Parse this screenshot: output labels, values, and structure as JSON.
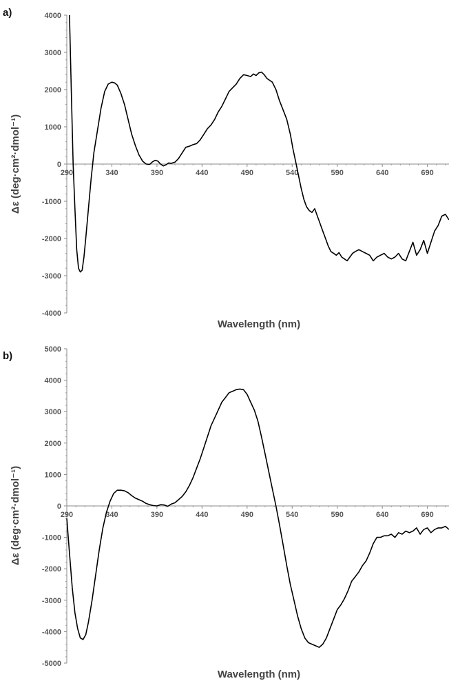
{
  "chart_data": [
    {
      "type": "line",
      "panel_label": "a)",
      "title": "",
      "xlabel": "Wavelength (nm)",
      "ylabel": "Δε (deg·cm²·dmol⁻¹)",
      "xlim": [
        290,
        714
      ],
      "ylim": [
        -4000,
        4000
      ],
      "xticks": [
        290,
        340,
        390,
        440,
        490,
        540,
        590,
        640,
        690
      ],
      "yticks": [
        -4000,
        -3000,
        -2000,
        -1000,
        0,
        1000,
        2000,
        3000,
        4000
      ],
      "grid": false,
      "series": [
        {
          "x": [
            293,
            295,
            297,
            299,
            301,
            303,
            305,
            307,
            309,
            311,
            314,
            317,
            320,
            324,
            328,
            332,
            336,
            340,
            343,
            346,
            350,
            354,
            358,
            362,
            366,
            370,
            374,
            378,
            382,
            385,
            388,
            391,
            394,
            397,
            400,
            403,
            406,
            410,
            414,
            418,
            422,
            426,
            430,
            434,
            438,
            442,
            446,
            450,
            454,
            458,
            462,
            466,
            470,
            474,
            478,
            482,
            486,
            490,
            494,
            497,
            500,
            503,
            506,
            509,
            512,
            515,
            518,
            522,
            526,
            530,
            534,
            538,
            541,
            544,
            547,
            550,
            553,
            556,
            559,
            562,
            565,
            568,
            571,
            574,
            577,
            580,
            583,
            586,
            589,
            592,
            595,
            598,
            601,
            604,
            607,
            610,
            614,
            618,
            622,
            626,
            630,
            634,
            638,
            642,
            646,
            650,
            654,
            658,
            662,
            666,
            670,
            674,
            678,
            682,
            686,
            690,
            694,
            698,
            702,
            706,
            710,
            714
          ],
          "y": [
            4000,
            2000,
            0,
            -1200,
            -2300,
            -2800,
            -2900,
            -2850,
            -2500,
            -2000,
            -1200,
            -400,
            300,
            900,
            1500,
            1950,
            2150,
            2200,
            2180,
            2120,
            1900,
            1600,
            1200,
            800,
            500,
            250,
            80,
            0,
            -10,
            60,
            100,
            80,
            0,
            -50,
            -20,
            30,
            20,
            50,
            150,
            300,
            450,
            480,
            520,
            550,
            650,
            800,
            950,
            1050,
            1200,
            1400,
            1550,
            1750,
            1950,
            2050,
            2150,
            2300,
            2400,
            2380,
            2350,
            2420,
            2380,
            2450,
            2470,
            2400,
            2300,
            2250,
            2200,
            2000,
            1700,
            1450,
            1200,
            800,
            400,
            50,
            -300,
            -650,
            -950,
            -1150,
            -1250,
            -1300,
            -1200,
            -1400,
            -1600,
            -1800,
            -2000,
            -2200,
            -2350,
            -2400,
            -2450,
            -2380,
            -2500,
            -2550,
            -2600,
            -2500,
            -2400,
            -2350,
            -2300,
            -2350,
            -2400,
            -2450,
            -2600,
            -2500,
            -2450,
            -2400,
            -2500,
            -2550,
            -2500,
            -2400,
            -2550,
            -2600,
            -2350,
            -2100,
            -2450,
            -2300,
            -2050,
            -2400,
            -2100,
            -1800,
            -1650,
            -1400,
            -1350,
            -1500
          ]
        }
      ]
    },
    {
      "type": "line",
      "panel_label": "b)",
      "title": "",
      "xlabel": "Wavelength (nm)",
      "ylabel": "Δε (deg·cm²·dmol⁻¹)",
      "xlim": [
        290,
        714
      ],
      "ylim": [
        -5000,
        5000
      ],
      "xticks": [
        290,
        340,
        390,
        440,
        490,
        540,
        590,
        640,
        690
      ],
      "yticks": [
        -5000,
        -4000,
        -3000,
        -2000,
        -1000,
        0,
        1000,
        2000,
        3000,
        4000,
        5000
      ],
      "grid": false,
      "series": [
        {
          "x": [
            290,
            293,
            296,
            299,
            302,
            305,
            308,
            311,
            314,
            318,
            322,
            326,
            330,
            334,
            338,
            342,
            346,
            350,
            354,
            358,
            362,
            366,
            370,
            374,
            378,
            382,
            386,
            390,
            394,
            398,
            402,
            406,
            410,
            414,
            418,
            422,
            426,
            430,
            434,
            438,
            442,
            446,
            450,
            454,
            458,
            462,
            466,
            470,
            474,
            478,
            482,
            486,
            490,
            494,
            498,
            502,
            506,
            510,
            514,
            518,
            522,
            526,
            530,
            534,
            538,
            542,
            546,
            550,
            554,
            558,
            562,
            566,
            570,
            574,
            578,
            582,
            586,
            590,
            594,
            598,
            602,
            606,
            610,
            614,
            618,
            622,
            626,
            630,
            634,
            638,
            642,
            646,
            650,
            654,
            658,
            662,
            666,
            670,
            674,
            678,
            682,
            686,
            690,
            694,
            698,
            702,
            706,
            710,
            714
          ],
          "y": [
            -400,
            -1500,
            -2600,
            -3400,
            -3900,
            -4200,
            -4250,
            -4100,
            -3700,
            -3000,
            -2200,
            -1400,
            -700,
            -200,
            150,
            400,
            500,
            500,
            480,
            420,
            330,
            250,
            200,
            150,
            80,
            40,
            10,
            0,
            40,
            30,
            -10,
            60,
            100,
            200,
            300,
            450,
            650,
            900,
            1200,
            1500,
            1850,
            2200,
            2550,
            2800,
            3050,
            3300,
            3450,
            3600,
            3650,
            3700,
            3720,
            3700,
            3550,
            3300,
            3050,
            2700,
            2200,
            1650,
            1100,
            550,
            0,
            -600,
            -1250,
            -1900,
            -2500,
            -3000,
            -3500,
            -3900,
            -4200,
            -4350,
            -4400,
            -4450,
            -4500,
            -4400,
            -4200,
            -3900,
            -3600,
            -3300,
            -3150,
            -2950,
            -2700,
            -2400,
            -2250,
            -2100,
            -1900,
            -1750,
            -1500,
            -1200,
            -1000,
            -1000,
            -950,
            -950,
            -900,
            -1000,
            -850,
            -900,
            -800,
            -850,
            -800,
            -700,
            -900,
            -750,
            -700,
            -850,
            -750,
            -700,
            -700,
            -650,
            -750
          ]
        }
      ]
    }
  ]
}
